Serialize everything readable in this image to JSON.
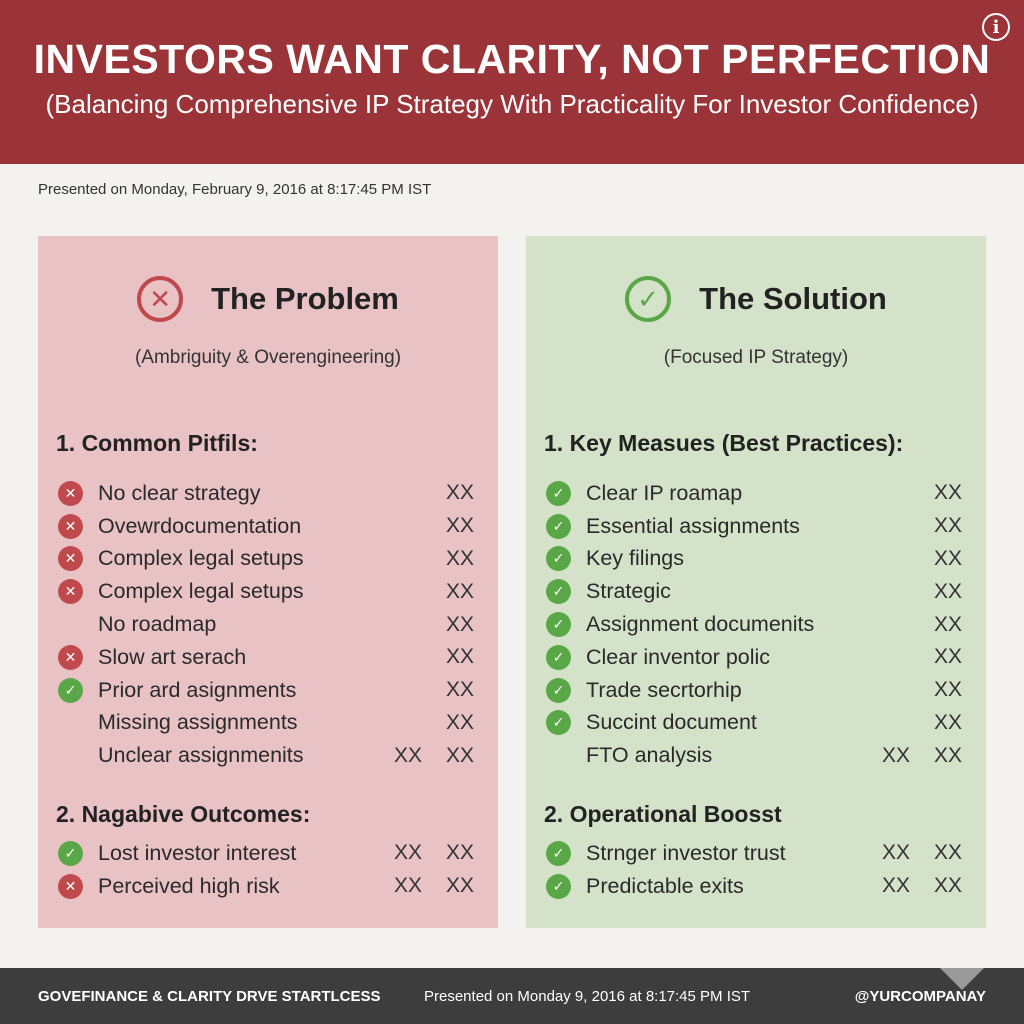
{
  "header": {
    "title": "INVESTORS WANT CLARITY, NOT PERFECTION",
    "subtitle": "(Balancing Comprehensive IP Strategy With Practicality For Investor Confidence)",
    "info_icon": "info-icon"
  },
  "presented": "Presented on Monday, February 9, 2016 at 8:17:45 PM IST",
  "problem": {
    "icon": "x-circle-icon",
    "title": "The Problem",
    "subtitle": "(Ambriguity & Overengineering)",
    "section1_title": "1. Common Pitfils:",
    "section1_items": [
      {
        "icon": "x",
        "label": "No clear strategy",
        "values": [
          "XX"
        ]
      },
      {
        "icon": "x",
        "label": "Ovewrdocumentation",
        "values": [
          "XX"
        ]
      },
      {
        "icon": "x",
        "label": "Complex legal setups",
        "values": [
          "XX"
        ]
      },
      {
        "icon": "x",
        "label": "Complex legal setups",
        "values": [
          "XX"
        ]
      },
      {
        "icon": "none",
        "label": "No roadmap",
        "values": [
          "XX"
        ]
      },
      {
        "icon": "x",
        "label": "Slow art serach",
        "values": [
          "XX"
        ]
      },
      {
        "icon": "check",
        "label": "Prior ard asignments",
        "values": [
          "XX"
        ]
      },
      {
        "icon": "none",
        "label": "Missing assignments",
        "values": [
          "XX"
        ]
      },
      {
        "icon": "none",
        "label": "Unclear assignmenits",
        "values": [
          "XX",
          "XX"
        ]
      }
    ],
    "section2_title": "2. Nagabive Outcomes:",
    "section2_items": [
      {
        "icon": "check",
        "label": "Lost investor interest",
        "values": [
          "XX",
          "XX"
        ]
      },
      {
        "icon": "x",
        "label": "Perceived high risk",
        "values": [
          "XX",
          "XX"
        ]
      }
    ]
  },
  "solution": {
    "icon": "check-circle-icon",
    "title": "The Solution",
    "subtitle": "(Focused IP Strategy)",
    "section1_title": "1. Key Measues (Best Practices):",
    "section1_items": [
      {
        "icon": "check",
        "label": "Clear IP roamap",
        "values": [
          "XX"
        ]
      },
      {
        "icon": "check",
        "label": "Essential assignments",
        "values": [
          "XX"
        ]
      },
      {
        "icon": "check",
        "label": "Key filings",
        "values": [
          "XX"
        ]
      },
      {
        "icon": "check",
        "label": "Strategic",
        "values": [
          "XX"
        ]
      },
      {
        "icon": "check",
        "label": "Assignment documenits",
        "values": [
          "XX"
        ]
      },
      {
        "icon": "check",
        "label": "Clear inventor polic",
        "values": [
          "XX"
        ]
      },
      {
        "icon": "check",
        "label": "Trade secrtorhip",
        "values": [
          "XX"
        ]
      },
      {
        "icon": "check",
        "label": "Succint document",
        "values": [
          "XX"
        ]
      },
      {
        "icon": "none",
        "label": "FTO analysis",
        "values": [
          "XX",
          "XX"
        ]
      }
    ],
    "section2_title": "2. Operational Boosst",
    "section2_items": [
      {
        "icon": "check",
        "label": "Strnger investor trust",
        "values": [
          "XX",
          "XX"
        ]
      },
      {
        "icon": "check",
        "label": "Predictable exits",
        "values": [
          "XX",
          "XX"
        ]
      }
    ]
  },
  "footer": {
    "left": "GOVEFINANCE & CLARITY DRVE STARTLCESS",
    "middle": "Presented on Monday 9, 2016 at 8:17:45 PM IST",
    "right": "@YURCOMPANAY"
  },
  "colors": {
    "header_bg": "#9b3438",
    "problem_bg": "#e8c2c4",
    "solution_bg": "#d4e2c9",
    "x_icon": "#c0494d",
    "check_icon": "#5aa747",
    "footer_bg": "#3d3d3d"
  }
}
